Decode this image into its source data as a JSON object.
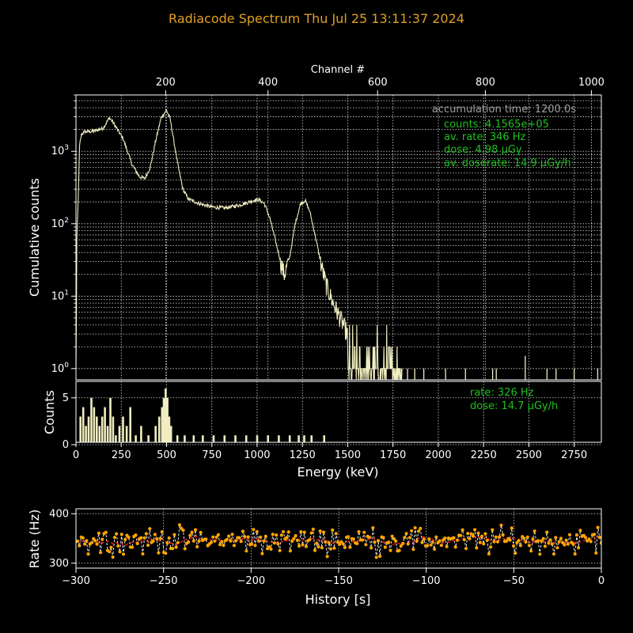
{
  "page": {
    "title": "Radiacode Spectrum   Thu Jul 25 13:11:37 2024"
  },
  "colors": {
    "background": "#000000",
    "title": "#e0a020",
    "spectrum_line": "#f0eec0",
    "info_gray": "#a0a0a0",
    "info_green": "#20c020",
    "history_points": "#ffa500",
    "history_line": "#ffffff",
    "history_mean": "#ff2020",
    "axis": "#ffffff"
  },
  "chart_data": [
    {
      "id": "cumulative-spectrum",
      "type": "line",
      "ylabel": "Cumulative counts",
      "xlabel": "Energy (keV)",
      "secondary_xlabel": "Channel #",
      "yscale": "log",
      "xlim": [
        0,
        2900
      ],
      "ylim": [
        0.7,
        6000
      ],
      "grid": true,
      "channel_ticks": [
        "200",
        "400",
        "600",
        "800",
        "1000"
      ],
      "channel_tick_energies": [
        495,
        1060,
        1665,
        2260,
        2845
      ],
      "ytick_labels": [
        "10^0",
        "10^1",
        "10^2",
        "10^3"
      ],
      "ytick_values": [
        1,
        10,
        100,
        1000
      ],
      "keypoints_keV": [
        [
          0,
          0.8
        ],
        [
          5,
          60
        ],
        [
          12,
          200
        ],
        [
          20,
          1200
        ],
        [
          30,
          1700
        ],
        [
          45,
          1850
        ],
        [
          100,
          1900
        ],
        [
          150,
          2100
        ],
        [
          185,
          2900
        ],
        [
          205,
          2500
        ],
        [
          260,
          1500
        ],
        [
          310,
          650
        ],
        [
          350,
          450
        ],
        [
          380,
          420
        ],
        [
          410,
          600
        ],
        [
          440,
          1400
        ],
        [
          470,
          2900
        ],
        [
          500,
          3700
        ],
        [
          520,
          2800
        ],
        [
          560,
          700
        ],
        [
          590,
          300
        ],
        [
          620,
          220
        ],
        [
          680,
          190
        ],
        [
          750,
          170
        ],
        [
          820,
          165
        ],
        [
          900,
          180
        ],
        [
          980,
          210
        ],
        [
          1010,
          215
        ],
        [
          1040,
          190
        ],
        [
          1070,
          120
        ],
        [
          1100,
          60
        ],
        [
          1130,
          30
        ],
        [
          1150,
          20
        ],
        [
          1180,
          35
        ],
        [
          1210,
          100
        ],
        [
          1240,
          190
        ],
        [
          1265,
          210
        ],
        [
          1290,
          150
        ],
        [
          1320,
          70
        ],
        [
          1350,
          30
        ],
        [
          1380,
          15
        ],
        [
          1420,
          8
        ],
        [
          1460,
          5
        ],
        [
          1500,
          3
        ],
        [
          1550,
          2
        ],
        [
          1600,
          1.5
        ],
        [
          1700,
          1.2
        ],
        [
          1800,
          1
        ]
      ],
      "sparse_lines_keV": [
        1830,
        1870,
        1920,
        2040,
        2150,
        2300,
        2320,
        2480,
        2600,
        2650,
        2750,
        2880
      ],
      "annotations": {
        "accumulation": "accumulation time: 1200.0s",
        "counts": "counts: 4.1565e+05",
        "avg_rate": "av. rate: 346 Hz",
        "dose": "dose: 4.98 µGy",
        "avg_doserate": "av. doserate: 14.9 µGy/h"
      }
    },
    {
      "id": "differential-spectrum",
      "type": "bar",
      "ylabel": "Counts",
      "xlabel": "Energy (keV)",
      "xlim": [
        0,
        2900
      ],
      "ylim": [
        0,
        6.5
      ],
      "grid": true,
      "xtick_labels": [
        "0",
        "250",
        "500",
        "750",
        "1000",
        "1250",
        "1500",
        "1750",
        "2000",
        "2250",
        "2500",
        "2750"
      ],
      "xtick_values": [
        0,
        250,
        500,
        750,
        1000,
        1250,
        1500,
        1750,
        2000,
        2250,
        2500,
        2750
      ],
      "ytick_labels": [
        "0",
        "5"
      ],
      "ytick_values": [
        0,
        5
      ],
      "spikes_keV": [
        [
          25,
          3
        ],
        [
          40,
          4
        ],
        [
          55,
          2
        ],
        [
          70,
          3
        ],
        [
          85,
          5
        ],
        [
          100,
          4
        ],
        [
          115,
          3
        ],
        [
          130,
          2
        ],
        [
          145,
          3
        ],
        [
          160,
          4
        ],
        [
          175,
          2
        ],
        [
          190,
          5
        ],
        [
          205,
          3
        ],
        [
          220,
          1
        ],
        [
          240,
          2
        ],
        [
          260,
          3
        ],
        [
          280,
          2
        ],
        [
          300,
          4
        ],
        [
          330,
          1
        ],
        [
          360,
          2
        ],
        [
          400,
          1
        ],
        [
          440,
          2
        ],
        [
          460,
          3
        ],
        [
          475,
          4
        ],
        [
          485,
          5
        ],
        [
          495,
          6
        ],
        [
          505,
          5
        ],
        [
          515,
          3
        ],
        [
          525,
          2
        ],
        [
          560,
          1
        ],
        [
          600,
          1
        ],
        [
          650,
          1
        ],
        [
          700,
          1
        ],
        [
          760,
          1
        ],
        [
          820,
          1
        ],
        [
          880,
          1
        ],
        [
          940,
          1
        ],
        [
          1000,
          1
        ],
        [
          1060,
          1
        ],
        [
          1120,
          1
        ],
        [
          1180,
          1
        ],
        [
          1230,
          1
        ],
        [
          1260,
          1
        ],
        [
          1300,
          1
        ],
        [
          1370,
          1
        ]
      ],
      "annotations": {
        "rate": "rate: 326 Hz",
        "dose": "dose: 14.7 µGy/h"
      }
    },
    {
      "id": "rate-history",
      "type": "scatter",
      "ylabel": "Rate (Hz)",
      "xlabel": "History [s]",
      "xlim": [
        -300,
        0
      ],
      "ylim": [
        290,
        410
      ],
      "grid": true,
      "xtick_labels": [
        "−300",
        "−250",
        "−200",
        "−150",
        "−100",
        "−50",
        "0"
      ],
      "xtick_values": [
        -300,
        -250,
        -200,
        -150,
        -100,
        -50,
        0
      ],
      "ytick_labels": [
        "300",
        "400"
      ],
      "ytick_values": [
        300,
        400
      ],
      "mean": 346,
      "spread": 18,
      "n_points": 300
    }
  ]
}
